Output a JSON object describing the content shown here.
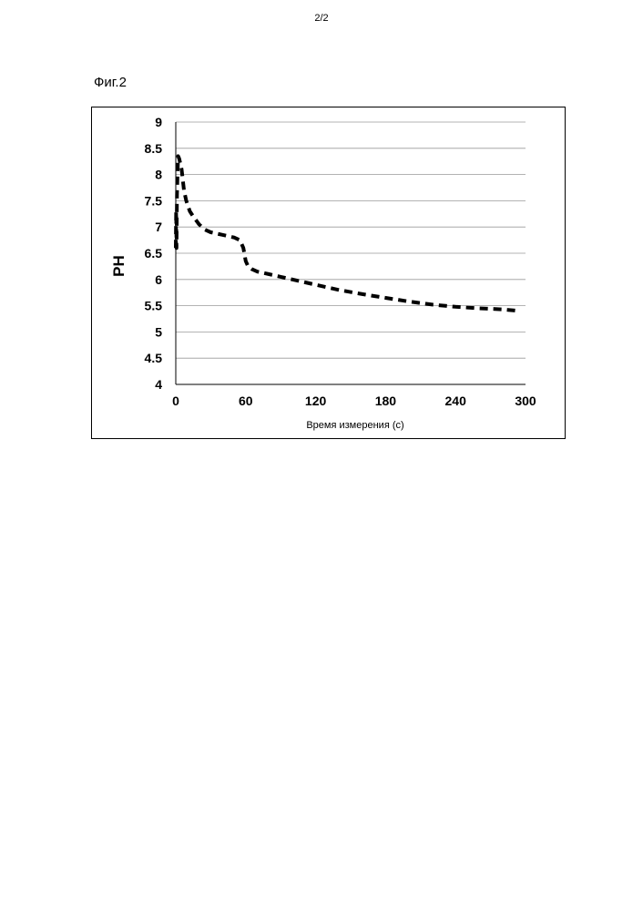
{
  "page": {
    "number": "2/2",
    "figure_label": "Фиг.2"
  },
  "chart_data": {
    "type": "line",
    "title": "",
    "xlabel": "Время измерения (с)",
    "ylabel": "PH",
    "xlim": [
      0,
      300
    ],
    "ylim": [
      4,
      9
    ],
    "x_ticks": [
      0,
      60,
      120,
      180,
      240,
      300
    ],
    "y_ticks": [
      4,
      4.5,
      5,
      5.5,
      6,
      6.5,
      7,
      7.5,
      8,
      8.5,
      9
    ],
    "y_tick_labels": [
      "4",
      "4.5",
      "5",
      "5.5",
      "6",
      "6.5",
      "7",
      "7.5",
      "8",
      "8.5",
      "9"
    ],
    "x_tick_labels": [
      "0",
      "60",
      "120",
      "180",
      "240",
      "300"
    ],
    "grid": "horizontal",
    "line_style": "dashed",
    "series": [
      {
        "x": [
          0,
          0.3,
          0.6,
          1,
          1.5,
          2,
          3,
          5,
          7,
          9,
          12,
          15,
          20,
          25,
          30,
          40,
          50,
          55,
          58,
          60,
          62,
          65,
          70,
          80,
          90,
          100,
          120,
          140,
          160,
          180,
          200,
          220,
          240,
          260,
          280,
          295
        ],
        "y": [
          6.6,
          7.3,
          6.6,
          7.6,
          8.0,
          8.35,
          8.3,
          8.1,
          7.7,
          7.5,
          7.3,
          7.2,
          7.05,
          6.95,
          6.9,
          6.85,
          6.8,
          6.75,
          6.6,
          6.35,
          6.25,
          6.2,
          6.15,
          6.1,
          6.05,
          6.0,
          5.9,
          5.8,
          5.72,
          5.65,
          5.58,
          5.52,
          5.48,
          5.45,
          5.43,
          5.4
        ]
      }
    ],
    "colors": {
      "line": "#000000",
      "grid": "#9a9a9a"
    }
  }
}
